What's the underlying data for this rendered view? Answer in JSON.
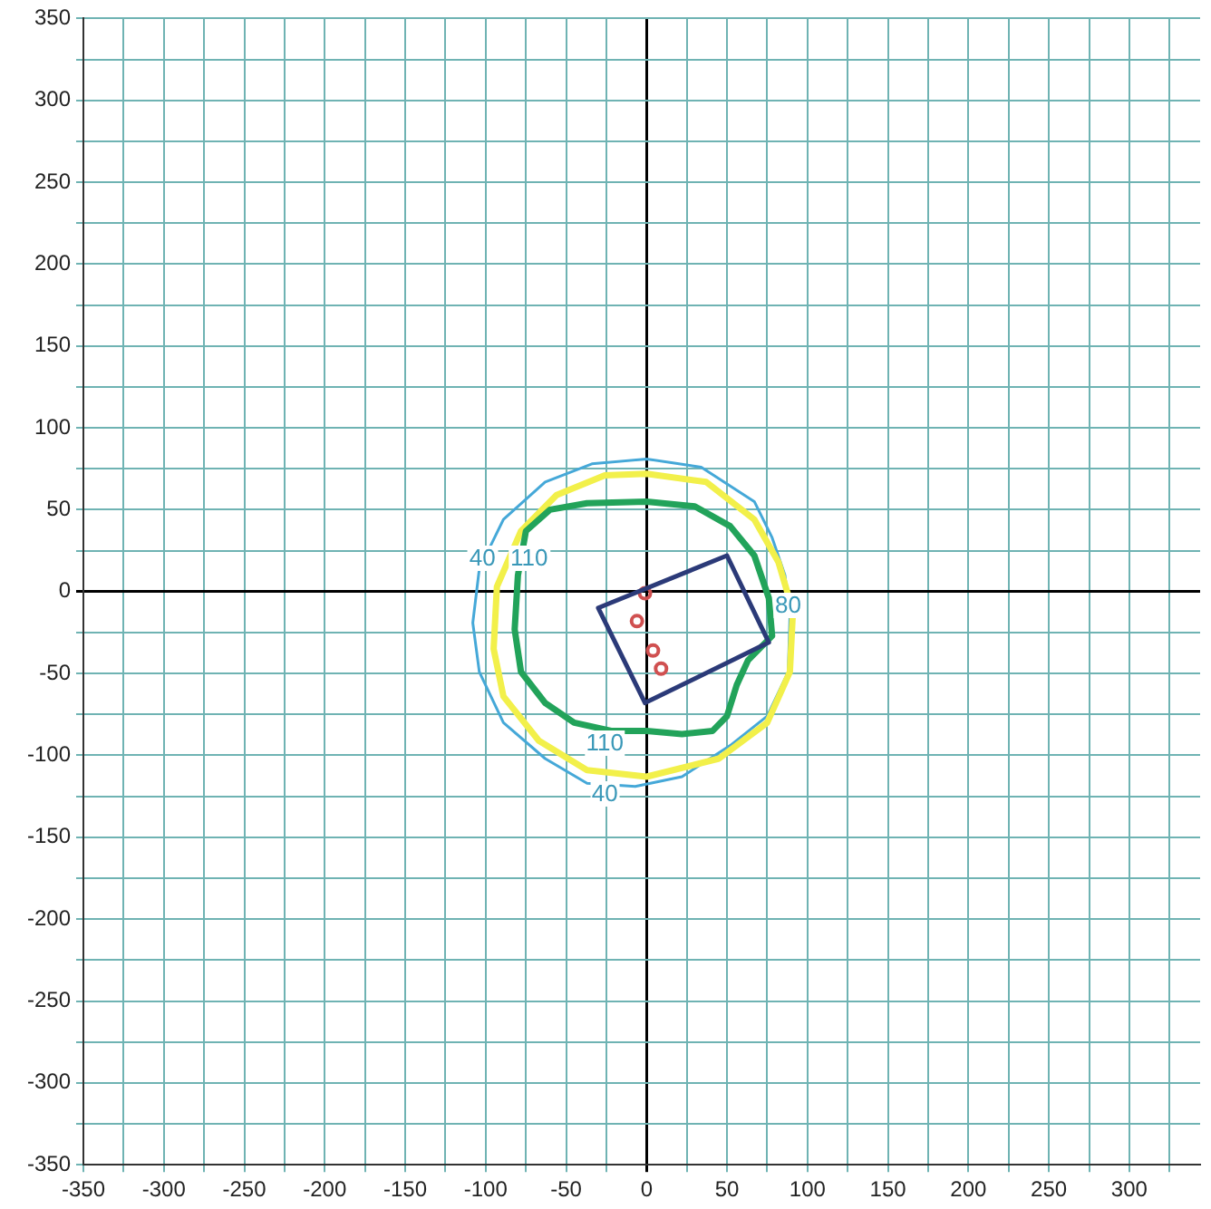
{
  "chart_data": {
    "type": "scatter",
    "xlim": [
      -350,
      344
    ],
    "ylim": [
      -350,
      350
    ],
    "xticks": [
      -350,
      {
        "value": -325,
        "label": null
      },
      -300,
      {
        "value": -275,
        "label": null
      },
      -250,
      {
        "value": -225,
        "label": null
      },
      -200,
      {
        "value": -175,
        "label": null
      },
      -150,
      {
        "value": -125,
        "label": null
      },
      -100,
      {
        "value": -75,
        "label": null
      },
      -50,
      {
        "value": -25,
        "label": null
      },
      0,
      {
        "value": 25,
        "label": null
      },
      50,
      {
        "value": 75,
        "label": null
      },
      100,
      {
        "value": 125,
        "label": null
      },
      150,
      {
        "value": 175,
        "label": null
      },
      200,
      {
        "value": 225,
        "label": null
      },
      250,
      {
        "value": 275,
        "label": null
      },
      300,
      {
        "value": 325,
        "label": null
      }
    ],
    "yticks": [
      -350,
      {
        "value": -325,
        "label": null
      },
      -300,
      {
        "value": -275,
        "label": null
      },
      -250,
      {
        "value": -225,
        "label": null
      },
      -200,
      {
        "value": -175,
        "label": null
      },
      -150,
      {
        "value": -125,
        "label": null
      },
      -100,
      {
        "value": -75,
        "label": null
      },
      -50,
      {
        "value": -25,
        "label": null
      },
      0,
      {
        "value": 25,
        "label": null
      },
      50,
      {
        "value": 75,
        "label": null
      },
      100,
      {
        "value": 125,
        "label": null
      },
      150,
      {
        "value": 175,
        "label": null
      },
      200,
      {
        "value": 225,
        "label": null
      },
      250,
      {
        "value": 275,
        "label": null
      },
      300,
      {
        "value": 325,
        "label": null
      },
      350
    ],
    "grid": true,
    "legend": false,
    "marker": "circle",
    "series": [
      {
        "color": "#d05050",
        "x": [
          -1,
          -6,
          4,
          9
        ],
        "values": [
          -1,
          -18,
          -36,
          -47
        ]
      }
    ],
    "annotations": [
      "40",
      "110",
      "80",
      "110",
      "40"
    ]
  }
}
